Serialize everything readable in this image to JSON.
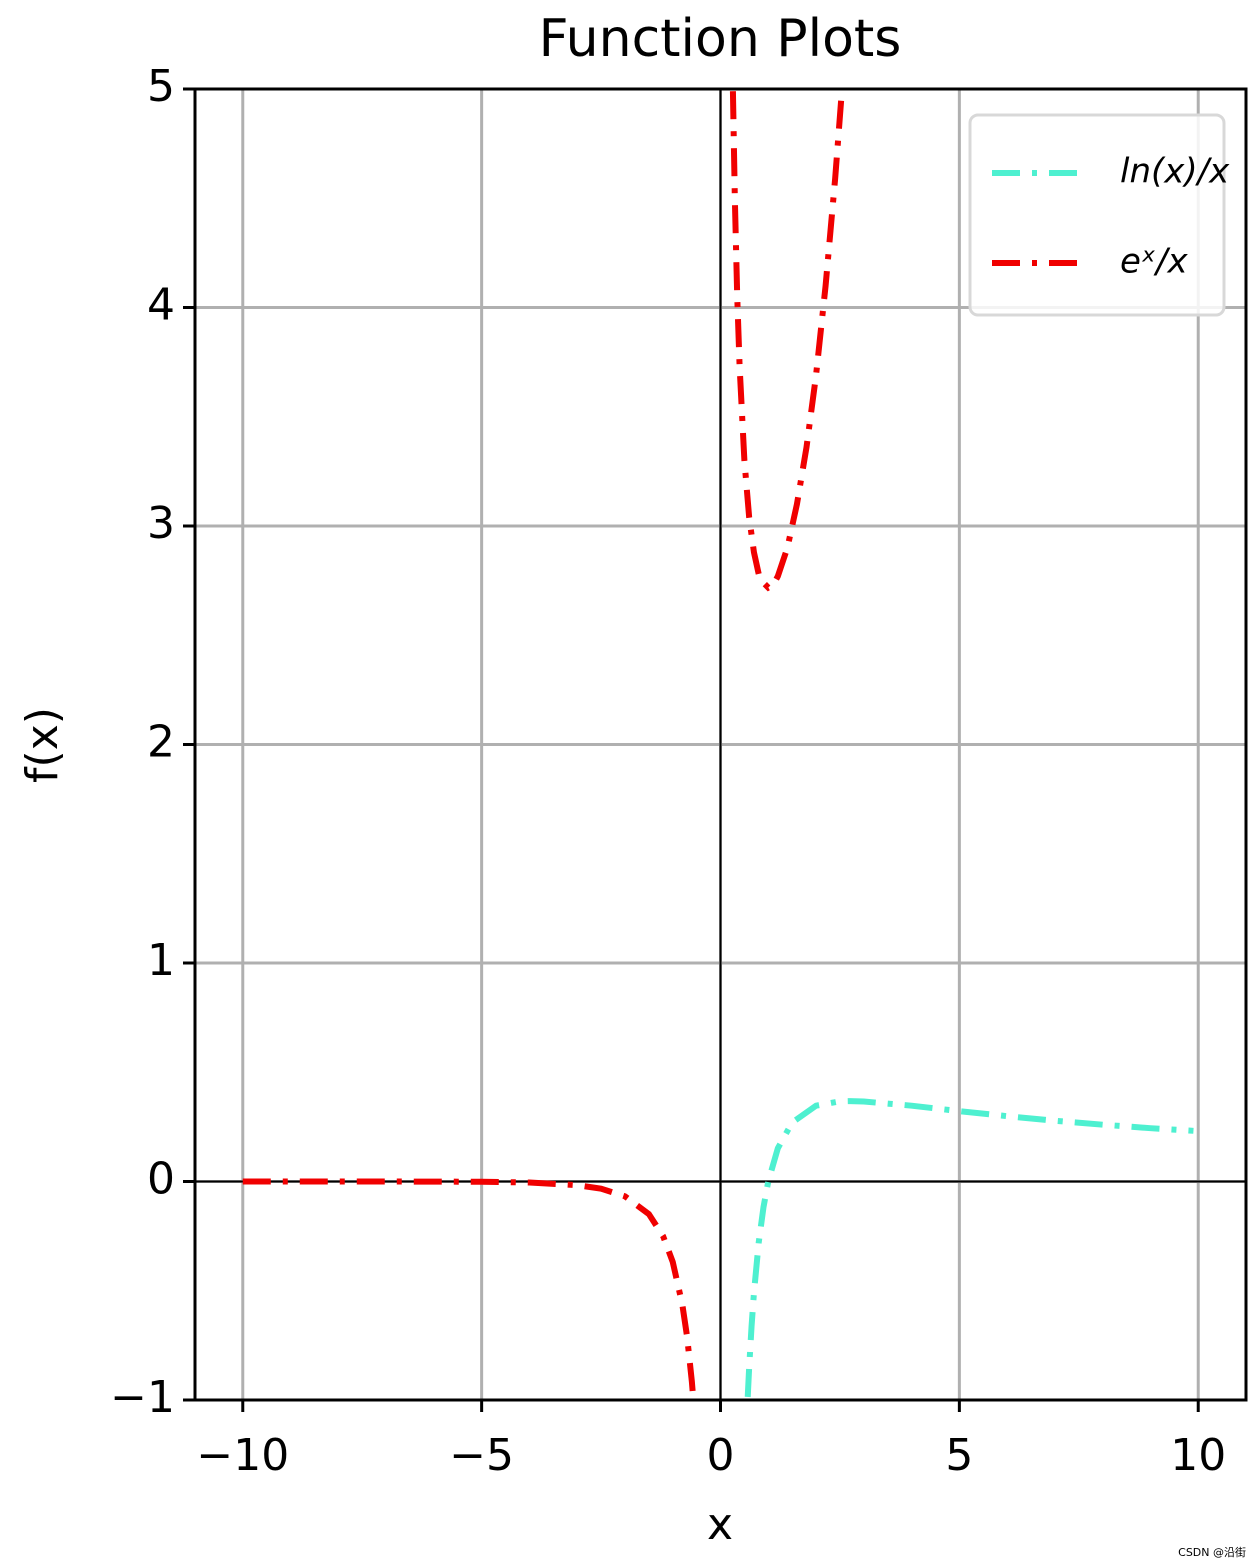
{
  "chart_data": {
    "type": "line",
    "title": "Function Plots",
    "x_label": "x",
    "y_label": "f(x)",
    "xlim": [
      -11,
      11
    ],
    "ylim": [
      -1,
      5
    ],
    "xticks": [
      {
        "value": -10,
        "label": "−10"
      },
      {
        "value": -5,
        "label": "−5"
      },
      0,
      5,
      10
    ],
    "yticks": [
      {
        "value": -1,
        "label": "−1"
      },
      0,
      1,
      2,
      3,
      4,
      5
    ],
    "grid": true,
    "legend": "upper right",
    "series": [
      {
        "name": "ln(x)/x",
        "color": "#4ef0d0",
        "x": [
          0.57,
          0.6,
          0.65,
          0.7,
          0.8,
          0.9,
          1,
          1.2,
          1.5,
          2,
          2.5,
          2.718,
          3,
          4,
          5,
          6,
          7,
          8,
          9,
          9.9
        ],
        "values": [
          -0.986,
          -0.851,
          -0.663,
          -0.51,
          -0.279,
          -0.117,
          0,
          0.152,
          0.27,
          0.347,
          0.367,
          0.368,
          0.366,
          0.347,
          0.322,
          0.299,
          0.278,
          0.26,
          0.244,
          0.232
        ]
      },
      {
        "name": "eˣ/x",
        "color": "#f00000",
        "x": [
          -10,
          -8,
          -6,
          -5,
          -4,
          -3,
          -2.5,
          -2,
          -1.5,
          -1.2,
          -1,
          -0.8,
          -0.7,
          -0.6,
          -0.57,
          0,
          0.26,
          0.3,
          0.35,
          0.4,
          0.5,
          0.6,
          0.7,
          0.8,
          0.9,
          1,
          1.1,
          1.2,
          1.4,
          1.6,
          1.8,
          2,
          2.2,
          2.4,
          2.54
        ],
        "values": [
          0,
          0,
          -0.0004,
          -0.0013,
          -0.0046,
          -0.0166,
          -0.0328,
          -0.0677,
          -0.149,
          -0.251,
          -0.368,
          -0.562,
          -0.709,
          -0.915,
          -0.994,
          null,
          4.99,
          4.5,
          4.05,
          3.73,
          3.3,
          3.04,
          2.88,
          2.78,
          2.74,
          2.718,
          2.73,
          2.77,
          2.9,
          3.1,
          3.36,
          3.69,
          4.1,
          4.59,
          4.99
        ]
      }
    ],
    "watermark": "CSDN @沿街"
  }
}
